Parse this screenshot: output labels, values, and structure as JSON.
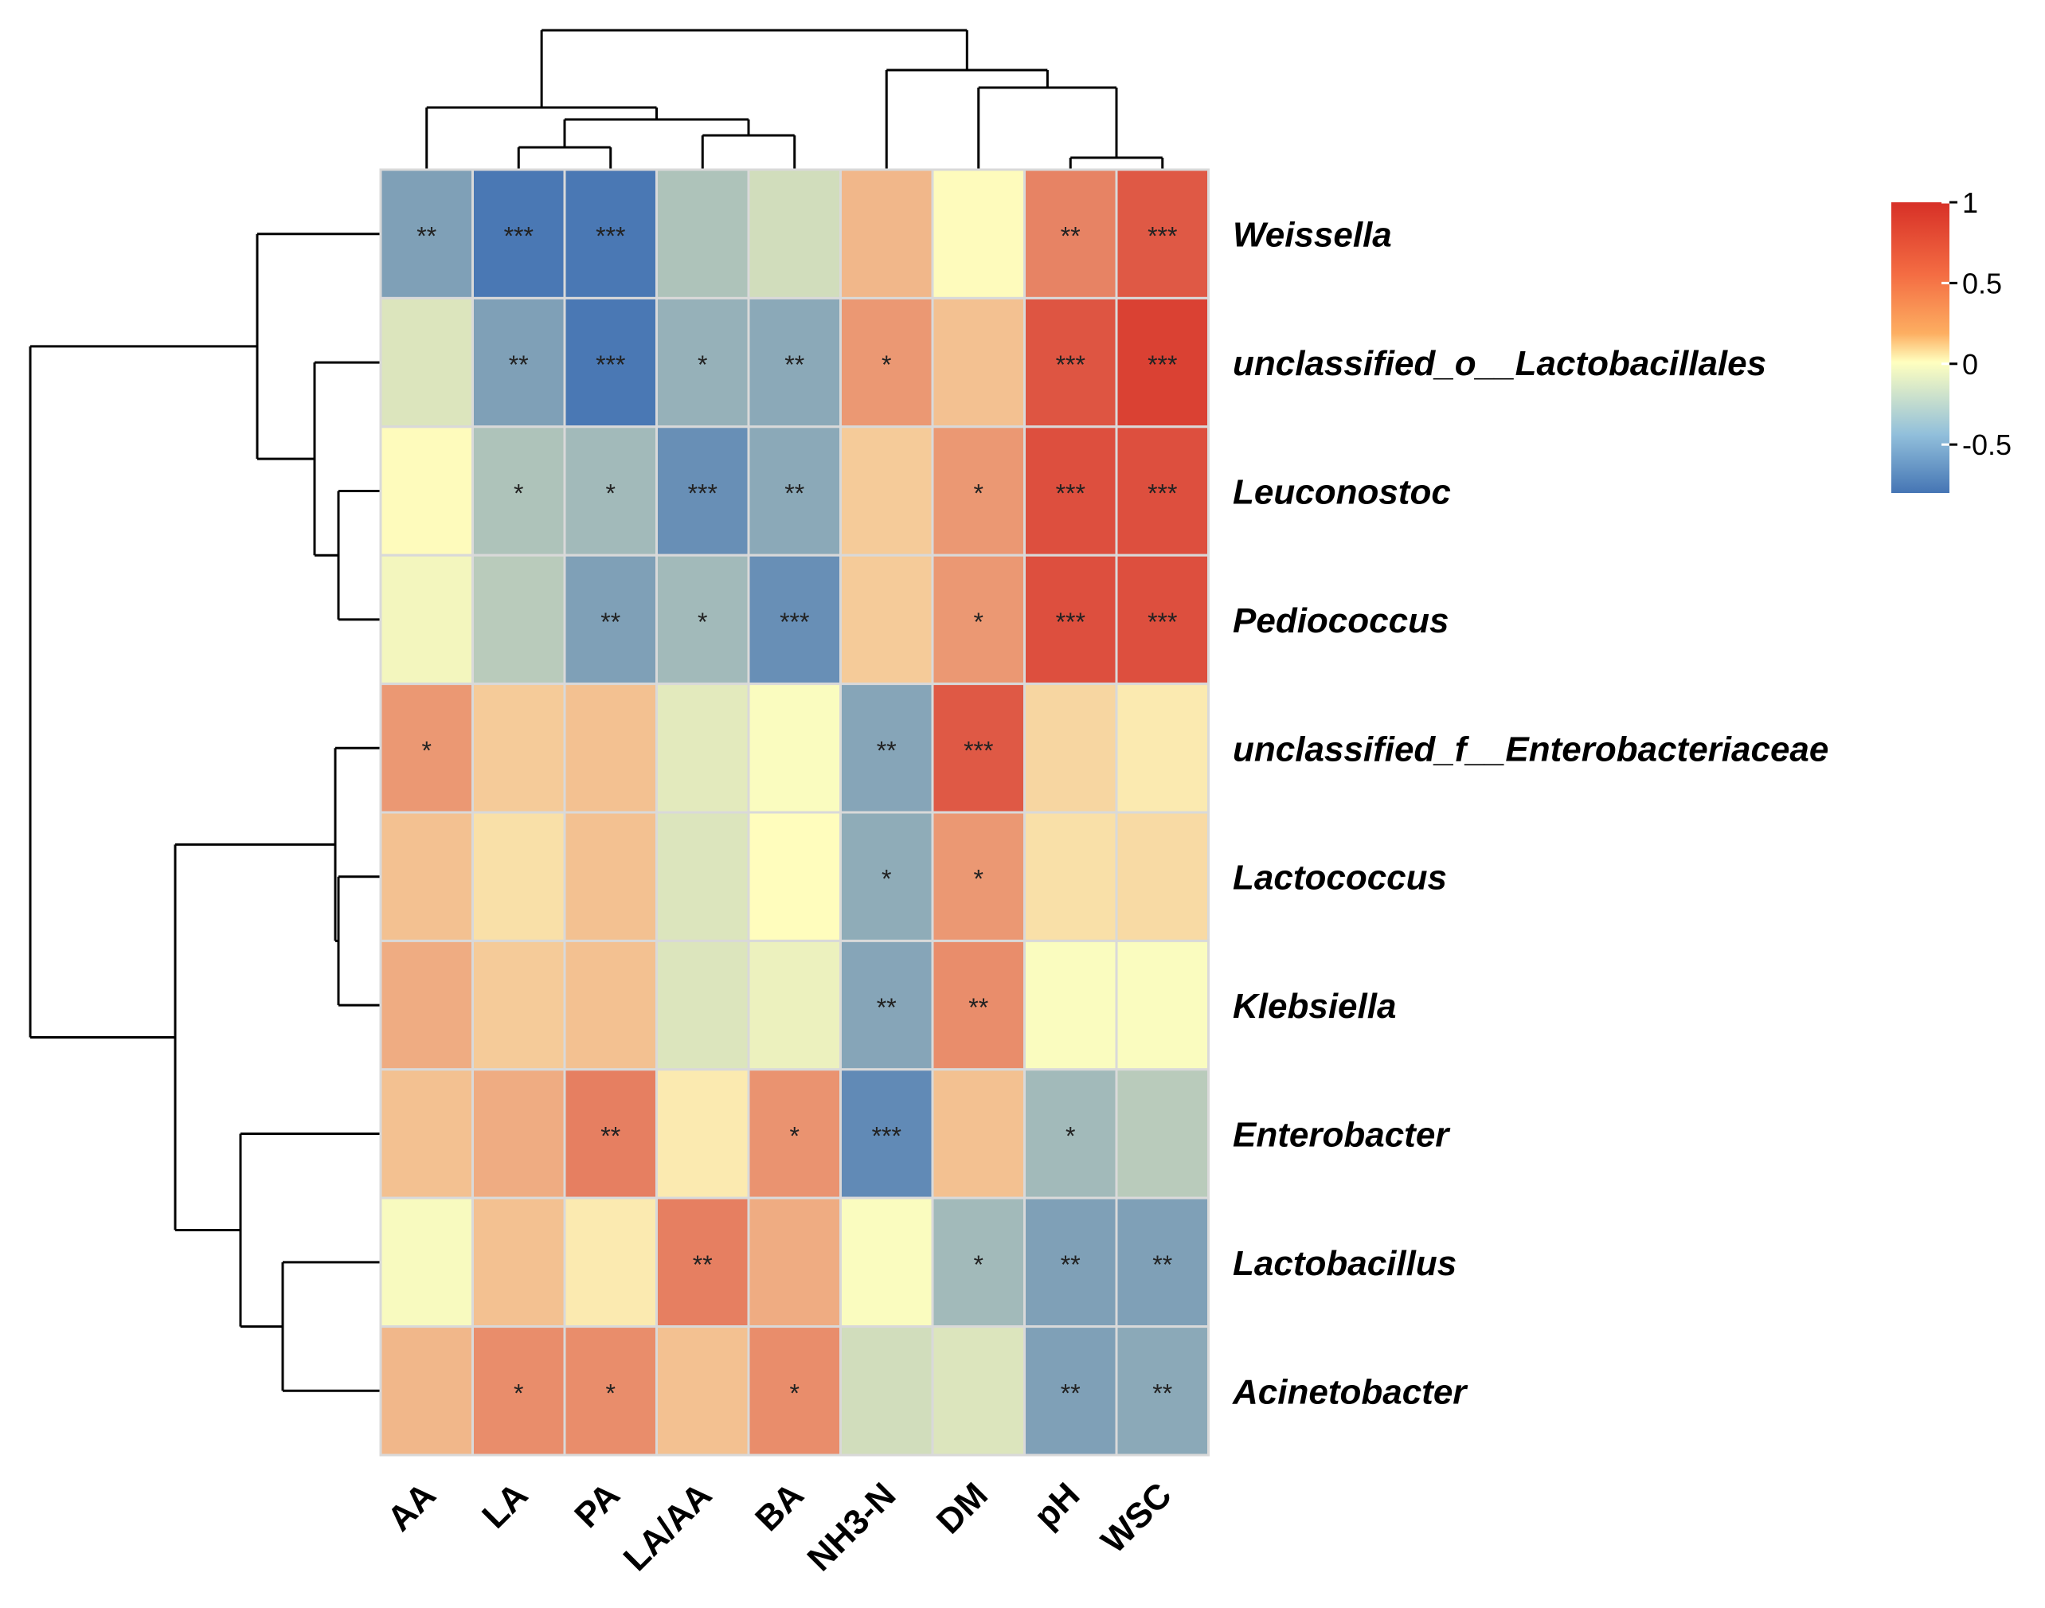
{
  "chart_data": {
    "type": "heatmap",
    "title": "",
    "columns": [
      "AA",
      "LA",
      "PA",
      "LA/AA",
      "BA",
      "NH3-N",
      "DM",
      "pH",
      "WSC"
    ],
    "rows": [
      "Weissella",
      "unclassified_o__Lactobacillales",
      "Leuconostoc",
      "Pediococcus",
      "unclassified_f__Enterobacteriaceae",
      "Lactococcus",
      "Klebsiella",
      "Enterobacter",
      "Lactobacillus",
      "Acinetobacter"
    ],
    "values": [
      [
        -0.55,
        -0.78,
        -0.78,
        -0.35,
        -0.2,
        0.35,
        0.02,
        0.6,
        0.8
      ],
      [
        -0.15,
        -0.55,
        -0.78,
        -0.45,
        -0.5,
        0.5,
        0.3,
        0.82,
        0.92
      ],
      [
        0.02,
        -0.35,
        -0.4,
        -0.65,
        -0.5,
        0.25,
        0.5,
        0.85,
        0.85
      ],
      [
        -0.05,
        -0.3,
        -0.55,
        -0.4,
        -0.65,
        0.25,
        0.5,
        0.85,
        0.85
      ],
      [
        0.5,
        0.25,
        0.3,
        -0.12,
        -0.02,
        -0.52,
        0.8,
        0.2,
        0.1
      ],
      [
        0.3,
        0.15,
        0.3,
        -0.15,
        0.01,
        -0.48,
        0.5,
        0.15,
        0.18
      ],
      [
        0.4,
        0.25,
        0.3,
        -0.15,
        -0.08,
        -0.52,
        0.55,
        -0.02,
        -0.02
      ],
      [
        0.3,
        0.4,
        0.62,
        0.1,
        0.52,
        -0.68,
        0.3,
        -0.4,
        -0.3
      ],
      [
        -0.03,
        0.3,
        0.1,
        0.62,
        0.4,
        -0.02,
        -0.4,
        -0.55,
        -0.55
      ],
      [
        0.35,
        0.55,
        0.55,
        0.3,
        0.55,
        -0.2,
        -0.15,
        -0.55,
        -0.5
      ]
    ],
    "significance": [
      [
        "**",
        "***",
        "***",
        "",
        "",
        "",
        "",
        "**",
        "***"
      ],
      [
        "",
        "**",
        "***",
        "*",
        "**",
        "*",
        "",
        "***",
        "***"
      ],
      [
        "",
        "*",
        "*",
        "***",
        "**",
        "",
        "*",
        "***",
        "***"
      ],
      [
        "",
        "",
        "**",
        "*",
        "***",
        "",
        "*",
        "***",
        "***"
      ],
      [
        "*",
        "",
        "",
        "",
        "",
        "**",
        "***",
        "",
        ""
      ],
      [
        "",
        "",
        "",
        "",
        "",
        "*",
        "*",
        "",
        ""
      ],
      [
        "",
        "",
        "",
        "",
        "",
        "**",
        "**",
        "",
        ""
      ],
      [
        "",
        "",
        "**",
        "",
        "*",
        "***",
        "",
        "*",
        ""
      ],
      [
        "",
        "",
        "",
        "**",
        "",
        "",
        "*",
        "**",
        "**"
      ],
      [
        "",
        "*",
        "*",
        "",
        "*",
        "",
        "",
        "**",
        "**"
      ]
    ],
    "legend": {
      "position": "top-right",
      "ticks": [
        1,
        0.5,
        0,
        -0.5
      ],
      "tick_labels": [
        "1",
        "0.5",
        "0",
        "-0.5"
      ],
      "range": [
        -0.8,
        1
      ],
      "colors": [
        "#4575b4",
        "#ffffbf",
        "#d73027"
      ]
    }
  }
}
